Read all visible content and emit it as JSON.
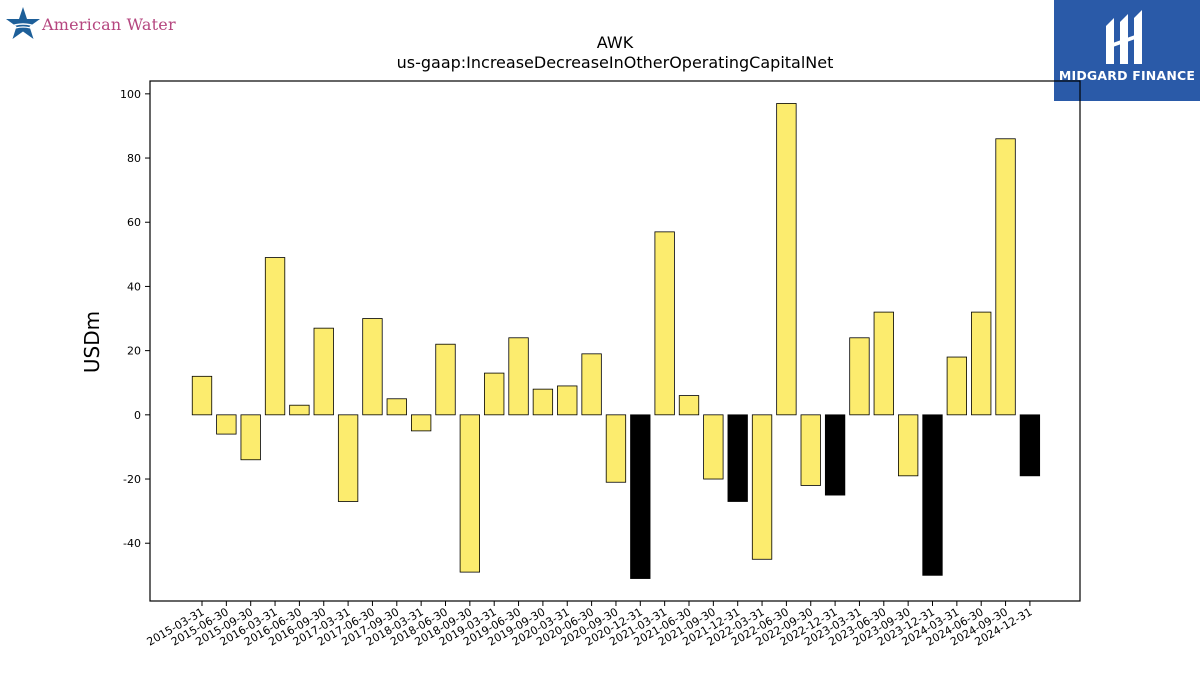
{
  "logos": {
    "left_text": "American Water",
    "right_text": "MIDGARD FINANCE"
  },
  "colors": {
    "positive_bar": "#fcec6e",
    "highlight_bar": "#000000",
    "logo_blue": "#2a5aa8",
    "logo_pink": "#b5467f"
  },
  "chart_data": {
    "type": "bar",
    "title": "AWK",
    "subtitle": "us-gaap:IncreaseDecreaseInOtherOperatingCapitalNet",
    "xlabel": "",
    "ylabel": "USDm",
    "ylim": [
      -58,
      104
    ],
    "yticks": [
      -40,
      -20,
      0,
      20,
      40,
      60,
      80,
      100
    ],
    "grid": false,
    "categories": [
      "2015-03-31",
      "2015-06-30",
      "2015-09-30",
      "2016-03-31",
      "2016-06-30",
      "2016-09-30",
      "2017-03-31",
      "2017-06-30",
      "2017-09-30",
      "2018-03-31",
      "2018-06-30",
      "2018-09-30",
      "2019-03-31",
      "2019-06-30",
      "2019-09-30",
      "2020-03-31",
      "2020-06-30",
      "2020-09-30",
      "2020-12-31",
      "2021-03-31",
      "2021-06-30",
      "2021-09-30",
      "2021-12-31",
      "2022-03-31",
      "2022-06-30",
      "2022-09-30",
      "2022-12-31",
      "2023-03-31",
      "2023-06-30",
      "2023-09-30",
      "2023-12-31",
      "2024-03-31",
      "2024-06-30",
      "2024-09-30",
      "2024-12-31"
    ],
    "values": [
      12,
      -6,
      -14,
      49,
      3,
      27,
      -27,
      30,
      5,
      -5,
      22,
      -49,
      13,
      24,
      8,
      9,
      19,
      -21,
      -51,
      57,
      6,
      -20,
      -27,
      -45,
      97,
      -22,
      -25,
      24,
      32,
      -19,
      -50,
      18,
      32,
      86,
      -19
    ],
    "highlight": [
      false,
      false,
      false,
      false,
      false,
      false,
      false,
      false,
      false,
      false,
      false,
      false,
      false,
      false,
      false,
      false,
      false,
      false,
      true,
      false,
      false,
      false,
      true,
      false,
      false,
      false,
      true,
      false,
      false,
      false,
      true,
      false,
      false,
      false,
      true
    ]
  }
}
